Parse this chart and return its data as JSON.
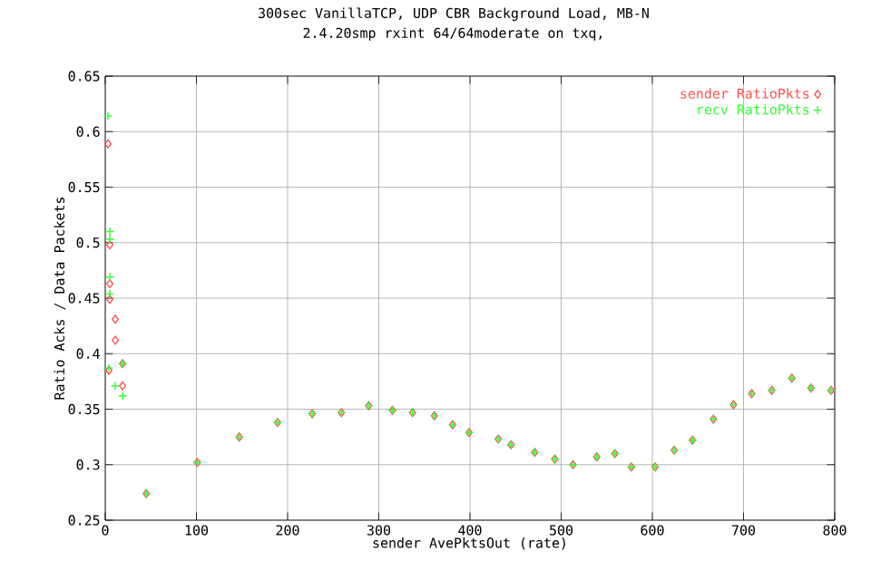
{
  "chart_data": {
    "type": "scatter",
    "title": "300sec VanillaTCP, UDP CBR Background Load, MB-N",
    "subtitle": "2.4.20smp rxint 64/64moderate on txq,",
    "xlabel": "sender AvePktsOut (rate)",
    "ylabel": "Ratio Acks / Data Packets",
    "xlim": [
      0,
      800
    ],
    "xticks": [
      0,
      100,
      200,
      300,
      400,
      500,
      600,
      700,
      800
    ],
    "ylim": [
      0.25,
      0.65
    ],
    "yticks": [
      0.25,
      0.3,
      0.35,
      0.4,
      0.45,
      0.5,
      0.55,
      0.6,
      0.65
    ],
    "grid": true,
    "legend": "top right",
    "series": [
      {
        "name": "sender RatioPkts",
        "color": "#ff5050",
        "marker": "diamond",
        "x": [
          3,
          5,
          5,
          5,
          11,
          11,
          19,
          4,
          19,
          45,
          101,
          147,
          189,
          227,
          259,
          289,
          315,
          337,
          361,
          381,
          399,
          431,
          445,
          471,
          493,
          513,
          539,
          559,
          577,
          603,
          624,
          644,
          667,
          689,
          709,
          731,
          753,
          774,
          796
        ],
        "values": [
          0.589,
          0.498,
          0.463,
          0.449,
          0.431,
          0.412,
          0.391,
          0.385,
          0.371,
          0.274,
          0.302,
          0.325,
          0.338,
          0.346,
          0.347,
          0.353,
          0.349,
          0.347,
          0.344,
          0.336,
          0.329,
          0.323,
          0.318,
          0.311,
          0.305,
          0.3,
          0.307,
          0.31,
          0.298,
          0.298,
          0.313,
          0.322,
          0.341,
          0.354,
          0.364,
          0.367,
          0.378,
          0.369,
          0.367
        ]
      },
      {
        "name": "recv RatioPkts",
        "color": "#30ff30",
        "marker": "cross",
        "x": [
          3,
          5,
          5,
          5,
          5,
          4,
          11,
          19,
          19,
          45,
          101,
          147,
          189,
          227,
          259,
          289,
          315,
          337,
          361,
          381,
          399,
          431,
          445,
          471,
          493,
          513,
          539,
          559,
          577,
          603,
          624,
          644,
          667,
          689,
          709,
          731,
          753,
          774,
          796
        ],
        "values": [
          0.614,
          0.51,
          0.503,
          0.469,
          0.454,
          0.387,
          0.371,
          0.391,
          0.362,
          0.274,
          0.302,
          0.325,
          0.338,
          0.346,
          0.347,
          0.353,
          0.349,
          0.347,
          0.344,
          0.336,
          0.329,
          0.323,
          0.318,
          0.311,
          0.305,
          0.3,
          0.307,
          0.31,
          0.298,
          0.298,
          0.313,
          0.322,
          0.341,
          0.354,
          0.364,
          0.367,
          0.378,
          0.369,
          0.367
        ]
      }
    ]
  }
}
